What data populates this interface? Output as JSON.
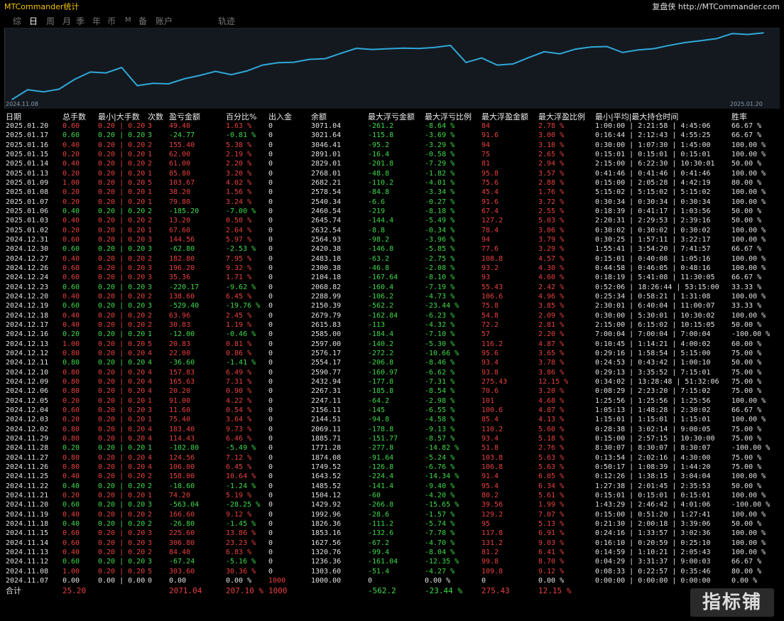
{
  "app": {
    "title": "MTCommander统计",
    "brand": "复盘侠 http://MTCommander.com"
  },
  "tabs": [
    "综",
    "日",
    "周",
    "月",
    "季",
    "年",
    "币",
    "M",
    "备",
    "账户",
    "轨迹"
  ],
  "active_tab": "日",
  "chart": {
    "x_start_label": "2024.11.08",
    "x_end_label": "2025.01.20",
    "line_color": "#2fa8d8",
    "background": "#141920"
  },
  "chart_data": {
    "type": "line",
    "x": [
      "2024.11.07",
      "2024.11.08",
      "2024.11.12",
      "2024.11.13",
      "2024.11.14",
      "2024.11.15",
      "2024.11.18",
      "2024.11.19",
      "2024.11.20",
      "2024.11.21",
      "2024.11.22",
      "2024.11.25",
      "2024.11.26",
      "2024.11.27",
      "2024.11.28",
      "2024.11.29",
      "2024.12.02",
      "2024.12.03",
      "2024.12.04",
      "2024.12.05",
      "2024.12.06",
      "2024.12.09",
      "2024.12.10",
      "2024.12.11",
      "2024.12.12",
      "2024.12.13",
      "2024.12.16",
      "2024.12.17",
      "2024.12.18",
      "2024.12.19",
      "2024.12.20",
      "2024.12.23",
      "2024.12.24",
      "2024.12.26",
      "2024.12.27",
      "2024.12.30",
      "2024.12.31",
      "2025.01.02",
      "2025.01.03",
      "2025.01.06",
      "2025.01.07",
      "2025.01.08",
      "2025.01.09",
      "2025.01.13",
      "2025.01.14",
      "2025.01.15",
      "2025.01.16",
      "2025.01.17",
      "2025.01.20"
    ],
    "values": [
      1000.0,
      1303.6,
      1236.36,
      1320.76,
      1627.56,
      1853.16,
      1826.36,
      1992.96,
      1429.92,
      1504.12,
      1485.52,
      1643.52,
      1749.52,
      1874.08,
      1771.28,
      1885.71,
      2069.11,
      2144.51,
      2156.11,
      2247.11,
      2267.31,
      2432.94,
      2590.77,
      2554.17,
      2576.17,
      2597.0,
      2585.0,
      2615.83,
      2679.79,
      2150.39,
      2288.99,
      2068.82,
      2104.18,
      2300.38,
      2483.18,
      2420.38,
      2564.93,
      2632.54,
      2645.74,
      2460.54,
      2540.34,
      2578.54,
      2682.21,
      2768.01,
      2829.01,
      2891.01,
      3046.41,
      3021.64,
      3071.04
    ],
    "ylim": [
      1000,
      3120
    ]
  },
  "table": {
    "headers": [
      "日期",
      "总手数",
      "最小|大手数",
      "次数",
      "盈亏金额",
      "百分比%",
      "出入金",
      "余额",
      "最大浮亏金额",
      "最大浮亏比例",
      "最大浮盈金额",
      "最大浮盈比例",
      "最小|平均|最大持仓时间",
      "胜率"
    ],
    "rows": [
      [
        "2025.01.20",
        "0.60",
        "0.20 | 0.20",
        "3",
        "49.40",
        "1.63 %",
        "0",
        "3071.04",
        "-261.2",
        "-8.64 %",
        "84",
        "2.78 %",
        "1:00:00 | 2:21:58 | 4:45:06",
        "66.67 %"
      ],
      [
        "2025.01.17",
        "0.60",
        "0.20 | 0.20",
        "3",
        "-24.77",
        "-0.81 %",
        "0",
        "3021.64",
        "-115.8",
        "-3.69 %",
        "91.6",
        "3.00 %",
        "0:16:44 | 2:12:43 | 4:55:25",
        "66.67 %"
      ],
      [
        "2025.01.16",
        "0.40",
        "0.20 | 0.20",
        "2",
        "155.40",
        "5.38 %",
        "0",
        "3046.41",
        "-95.2",
        "-3.29 %",
        "94",
        "3.18 %",
        "0:30:00 | 1:07:30 | 1:45:00",
        "100.00 %"
      ],
      [
        "2025.01.15",
        "0.20",
        "0.20 | 0.20",
        "1",
        "62.00",
        "2.19 %",
        "0",
        "2891.01",
        "-16.4",
        "-0.58 %",
        "75",
        "2.65 %",
        "0:15:01 | 0:15:01 | 0:15:01",
        "100.00 %"
      ],
      [
        "2025.01.14",
        "0.40",
        "0.20 | 0.20",
        "2",
        "61.00",
        "2.20 %",
        "0",
        "2829.01",
        "-201.8",
        "-7.29 %",
        "81",
        "2.94 %",
        "2:15:00 | 6:22:30 | 10:30:01",
        "50.00 %"
      ],
      [
        "2025.01.13",
        "0.20",
        "0.20 | 0.20",
        "1",
        "85.80",
        "3.20 %",
        "0",
        "2768.01",
        "-48.8",
        "-1.82 %",
        "95.8",
        "3.57 %",
        "0:41:46 | 0:41:46 | 0:41:46",
        "100.00 %"
      ],
      [
        "2025.01.09",
        "1.00",
        "0.20 | 0.20",
        "5",
        "103.67",
        "4.02 %",
        "0",
        "2682.21",
        "-110.2",
        "-4.01 %",
        "75.6",
        "2.88 %",
        "0:15:00 | 2:05:28 | 4:42:19",
        "80.00 %"
      ],
      [
        "2025.01.08",
        "0.20",
        "0.20 | 0.20",
        "1",
        "38.20",
        "1.56 %",
        "0",
        "2578.54",
        "-84.8",
        "-3.34 %",
        "45.4",
        "1.76 %",
        "5:15:02 | 5:15:02 | 5:15:02",
        "100.00 %"
      ],
      [
        "2025.01.07",
        "0.20",
        "0.20 | 0.20",
        "1",
        "79.80",
        "3.24 %",
        "0",
        "2540.34",
        "-6.6",
        "-0.27 %",
        "91.6",
        "3.72 %",
        "0:30:34 | 0:30:34 | 0:30:34",
        "100.00 %"
      ],
      [
        "2025.01.06",
        "0.40",
        "0.20 | 0.20",
        "2",
        "-185.20",
        "-7.00 %",
        "0",
        "2460.54",
        "-219",
        "-8.18 %",
        "67.4",
        "2.55 %",
        "0:18:39 | 0:41:17 | 1:03:56",
        "50.00 %"
      ],
      [
        "2025.01.03",
        "0.40",
        "0.20 | 0.20",
        "2",
        "13.20",
        "0.50 %",
        "0",
        "2645.74",
        "-144.4",
        "-5.49 %",
        "127.2",
        "5.03 %",
        "2:20:31 | 2:29:53 | 2:39:16",
        "50.00 %"
      ],
      [
        "2025.01.02",
        "0.20",
        "0.20 | 0.20",
        "1",
        "67.60",
        "2.64 %",
        "0",
        "2632.54",
        "-8.8",
        "-0.34 %",
        "78.4",
        "3.06 %",
        "0:30:02 | 0:30:02 | 0:30:02",
        "100.00 %"
      ],
      [
        "2024.12.31",
        "0.60",
        "0.20 | 0.20",
        "3",
        "144.56",
        "5.97 %",
        "0",
        "2564.93",
        "-98.2",
        "-3.96 %",
        "94",
        "3.79 %",
        "0:30:25 | 1:57:11 | 3:22:17",
        "100.00 %"
      ],
      [
        "2024.12.30",
        "0.60",
        "0.20 | 0.20",
        "3",
        "-62.80",
        "-2.53 %",
        "0",
        "2420.38",
        "-146.8",
        "-5.85 %",
        "77.6",
        "3.29 %",
        "1:55:41 | 3:54:20 | 7:41:57",
        "66.67 %"
      ],
      [
        "2024.12.27",
        "0.40",
        "0.20 | 0.20",
        "2",
        "182.80",
        "7.95 %",
        "0",
        "2483.18",
        "-63.2",
        "-2.75 %",
        "108.8",
        "4.57 %",
        "0:15:01 | 0:40:08 | 1:05:16",
        "100.00 %"
      ],
      [
        "2024.12.26",
        "0.60",
        "0.20 | 0.20",
        "3",
        "196.20",
        "9.32 %",
        "0",
        "2300.38",
        "-46.8",
        "-2.08 %",
        "93.2",
        "4.30 %",
        "0:44:58 | 0:46:05 | 0:48:16",
        "100.00 %"
      ],
      [
        "2024.12.24",
        "0.60",
        "0.20 | 0.20",
        "3",
        "35.36",
        "1.71 %",
        "0",
        "2104.18",
        "-167.64",
        "-8.10 %",
        "93",
        "4.60 %",
        "0:18:19 | 5:41:08 | 11:30:05",
        "66.67 %"
      ],
      [
        "2024.12.23",
        "0.60",
        "0.20 | 0.20",
        "3",
        "-220.17",
        "-9.62 %",
        "0",
        "2068.82",
        "-160.4",
        "-7.19 %",
        "55.43",
        "2.42 %",
        "0:52:06 | 18:26:44 | 53:15:00",
        "33.33 %"
      ],
      [
        "2024.12.20",
        "0.40",
        "0.20 | 0.20",
        "2",
        "138.60",
        "6.45 %",
        "0",
        "2288.99",
        "-106.2",
        "-4.73 %",
        "106.6",
        "4.96 %",
        "0:25:34 | 0:58:21 | 1:31:08",
        "100.00 %"
      ],
      [
        "2024.12.19",
        "0.60",
        "0.20 | 0.20",
        "3",
        "-529.40",
        "-19.76 %",
        "0",
        "2150.39",
        "-562.2",
        "-23.44 %",
        "75.8",
        "3.85 %",
        "2:30:01 | 6:40:04 | 11:00:07",
        "33.33 %"
      ],
      [
        "2024.12.18",
        "0.40",
        "0.20 | 0.20",
        "2",
        "63.96",
        "2.45 %",
        "0",
        "2679.79",
        "-162.84",
        "-6.23 %",
        "54.8",
        "2.09 %",
        "0:30:00 | 5:30:01 | 10:30:02",
        "100.00 %"
      ],
      [
        "2024.12.17",
        "0.40",
        "0.20 | 0.20",
        "2",
        "30.83",
        "1.19 %",
        "0",
        "2615.83",
        "-113",
        "-4.32 %",
        "72.2",
        "2.81 %",
        "2:15:00 | 6:15:02 | 10:15:05",
        "50.00 %"
      ],
      [
        "2024.12.16",
        "0.20",
        "0.20 | 0.20",
        "1",
        "-12.00",
        "-0.46 %",
        "0",
        "2585.00",
        "-184.4",
        "-7.10 %",
        "57",
        "2.20 %",
        "7:00:04 | 7:00:04 | 7:00:04",
        "-100.00 %"
      ],
      [
        "2024.12.13",
        "1.00",
        "0.20 | 0.20",
        "5",
        "20.83",
        "0.81 %",
        "0",
        "2597.00",
        "-140.2",
        "-5.30 %",
        "116.2",
        "4.87 %",
        "0:10:45 | 1:14:21 | 4:00:02",
        "60.00 %"
      ],
      [
        "2024.12.12",
        "0.80",
        "0.20 | 0.20",
        "4",
        "22.00",
        "0.86 %",
        "0",
        "2576.17",
        "-272.2",
        "-10.66 %",
        "95.6",
        "3.65 %",
        "0:29:16 | 1:58:54 | 5:15:00",
        "75.00 %"
      ],
      [
        "2024.12.11",
        "0.80",
        "0.20 | 0.20",
        "4",
        "-36.60",
        "-1.41 %",
        "0",
        "2554.17",
        "-206.8",
        "-8.46 %",
        "93.4",
        "3.78 %",
        "0:24:53 | 0:43:42 | 1:00:10",
        "50.00 %"
      ],
      [
        "2024.12.10",
        "0.80",
        "0.20 | 0.20",
        "4",
        "157.83",
        "6.49 %",
        "0",
        "2590.77",
        "-160.97",
        "-6.62 %",
        "93.8",
        "3.86 %",
        "0:29:13 | 3:35:52 | 7:15:01",
        "75.00 %"
      ],
      [
        "2024.12.09",
        "0.80",
        "0.20 | 0.20",
        "4",
        "165.63",
        "7.31 %",
        "0",
        "2432.94",
        "-177.8",
        "-7.31 %",
        "275.43",
        "12.15 %",
        "0:34:02 | 13:28:48 | 51:32:06",
        "75.00 %"
      ],
      [
        "2024.12.06",
        "0.80",
        "0.20 | 0.20",
        "4",
        "20.20",
        "0.90 %",
        "0",
        "2267.31",
        "-185.8",
        "-8.54 %",
        "70.6",
        "3.20 %",
        "0:08:29 | 2:23:20 | 7:15:02",
        "75.00 %"
      ],
      [
        "2024.12.05",
        "0.20",
        "0.20 | 0.20",
        "1",
        "91.00",
        "4.22 %",
        "0",
        "2247.11",
        "-64.2",
        "-2.98 %",
        "101",
        "4.68 %",
        "1:25:56 | 1:25:56 | 1:25:56",
        "100.00 %"
      ],
      [
        "2024.12.04",
        "0.60",
        "0.20 | 0.20",
        "3",
        "11.60",
        "0.54 %",
        "0",
        "2156.11",
        "-145",
        "-6.55 %",
        "100.6",
        "4.87 %",
        "1:05:13 | 1:48:28 | 2:30:02",
        "66.67 %"
      ],
      [
        "2024.12.03",
        "0.20",
        "0.20 | 0.20",
        "1",
        "75.40",
        "3.64 %",
        "0",
        "2144.51",
        "-94.8",
        "-4.58 %",
        "85.4",
        "4.13 %",
        "1:15:01 | 1:15:01 | 1:15:01",
        "100.00 %"
      ],
      [
        "2024.12.02",
        "0.80",
        "0.20 | 0.20",
        "4",
        "183.40",
        "9.73 %",
        "0",
        "2069.11",
        "-178.8",
        "-9.13 %",
        "110.2",
        "5.60 %",
        "0:28:38 | 3:02:14 | 9:00:05",
        "75.00 %"
      ],
      [
        "2024.11.29",
        "0.80",
        "0.20 | 0.20",
        "4",
        "114.43",
        "6.46 %",
        "0",
        "1885.71",
        "-151.77",
        "-8.57 %",
        "93.4",
        "5.18 %",
        "0:15:00 | 2:57:15 | 10:30:00",
        "75.00 %"
      ],
      [
        "2024.11.28",
        "0.20",
        "0.20 | 0.20",
        "1",
        "-102.80",
        "-5.49 %",
        "0",
        "1771.28",
        "-277.8",
        "-14.82 %",
        "51.8",
        "2.76 %",
        "8:30:07 | 8:30:07 | 8:30:07",
        "-100.00 %"
      ],
      [
        "2024.11.27",
        "0.80",
        "0.20 | 0.20",
        "4",
        "124.56",
        "7.12 %",
        "0",
        "1874.08",
        "-91.64",
        "-5.24 %",
        "103.8",
        "5.63 %",
        "0:13:54 | 2:02:16 | 4:30:00",
        "75.00 %"
      ],
      [
        "2024.11.26",
        "0.80",
        "0.20 | 0.20",
        "4",
        "106.00",
        "6.45 %",
        "0",
        "1749.52",
        "-126.8",
        "-6.76 %",
        "106.8",
        "5.63 %",
        "0:50:17 | 1:08:39 | 1:44:20",
        "75.00 %"
      ],
      [
        "2024.11.25",
        "0.40",
        "0.20 | 0.20",
        "2",
        "158.00",
        "10.64 %",
        "0",
        "1643.52",
        "-224.4",
        "-14.34 %",
        "91.4",
        "6.05 %",
        "0:12:26 | 1:38:15 | 3:04:04",
        "100.00 %"
      ],
      [
        "2024.11.22",
        "0.40",
        "0.20 | 0.20",
        "2",
        "-18.60",
        "-1.24 %",
        "0",
        "1485.52",
        "-141.4",
        "-9.40 %",
        "95.4",
        "6.34 %",
        "1:27:38 | 2:01:45 | 2:35:53",
        "50.00 %"
      ],
      [
        "2024.11.21",
        "0.20",
        "0.20 | 0.20",
        "1",
        "74.20",
        "5.19 %",
        "0",
        "1504.12",
        "-60",
        "-4.20 %",
        "80.2",
        "5.61 %",
        "0:15:01 | 0:15:01 | 0:15:01",
        "100.00 %"
      ],
      [
        "2024.11.20",
        "0.60",
        "0.20 | 0.20",
        "3",
        "-563.04",
        "-28.25 %",
        "0",
        "1429.92",
        "-266.8",
        "-15.65 %",
        "39.56",
        "1.99 %",
        "1:43:29 | 2:46:42 | 4:01:06",
        "-100.00 %"
      ],
      [
        "2024.11.19",
        "0.40",
        "0.20 | 0.20",
        "2",
        "166.60",
        "9.12 %",
        "0",
        "1992.96",
        "-28.6",
        "-1.57 %",
        "129.2",
        "7.07 %",
        "0:15:00 | 0:51:20 | 1:27:41",
        "100.00 %"
      ],
      [
        "2024.11.18",
        "0.40",
        "0.20 | 0.20",
        "2",
        "-26.80",
        "-1.45 %",
        "0",
        "1826.36",
        "-111.2",
        "-5.74 %",
        "95",
        "5.13 %",
        "0:21:30 | 2:00:18 | 3:39:06",
        "50.00 %"
      ],
      [
        "2024.11.15",
        "0.60",
        "0.20 | 0.20",
        "3",
        "225.60",
        "13.86 %",
        "0",
        "1853.16",
        "-132.6",
        "-7.78 %",
        "117.8",
        "6.91 %",
        "0:24:16 | 1:33:57 | 3:02:36",
        "100.00 %"
      ],
      [
        "2024.11.14",
        "0.60",
        "0.20 | 0.20",
        "3",
        "306.80",
        "23.23 %",
        "0",
        "1627.56",
        "-67.2",
        "-4.70 %",
        "131.2",
        "9.03 %",
        "0:16:10 | 0:20:59 | 0:25:10",
        "100.00 %"
      ],
      [
        "2024.11.13",
        "0.40",
        "0.20 | 0.20",
        "2",
        "84.40",
        "6.83 %",
        "0",
        "1320.76",
        "-99.4",
        "-8.04 %",
        "81.2",
        "6.41 %",
        "0:14:59 | 1:10:21 | 2:05:43",
        "100.00 %"
      ],
      [
        "2024.11.12",
        "0.60",
        "0.20 | 0.20",
        "3",
        "-67.24",
        "-5.16 %",
        "0",
        "1236.36",
        "-161.04",
        "-12.35 %",
        "99.8",
        "8.70 %",
        "0:04:29 | 3:31:37 | 9:00:03",
        "66.67 %"
      ],
      [
        "2024.11.08",
        "1.00",
        "0.20 | 0.20",
        "5",
        "303.60",
        "30.36 %",
        "0",
        "1303.60",
        "-51.4",
        "-4.27 %",
        "109.8",
        "9.12 %",
        "0:08:33 | 0:22:57 | 0:35:46",
        "80.00 %"
      ],
      [
        "2024.11.07",
        "0.00",
        "0.00 | 0.00",
        "0",
        "0.00",
        "0.00 %",
        "1000",
        "1000.00",
        "0",
        "0.00 %",
        "0",
        "0.00 %",
        "0:00:00 | 0:00:00 | 0:00:00",
        "0.00 %"
      ]
    ],
    "total": [
      "合计",
      "25.20",
      "",
      "",
      "2071.04",
      "207.10 %",
      "1000",
      "",
      "-562.2",
      "-23.44 %",
      "275.43",
      "12.15 %",
      "",
      ""
    ]
  },
  "watermark": "指标铺"
}
